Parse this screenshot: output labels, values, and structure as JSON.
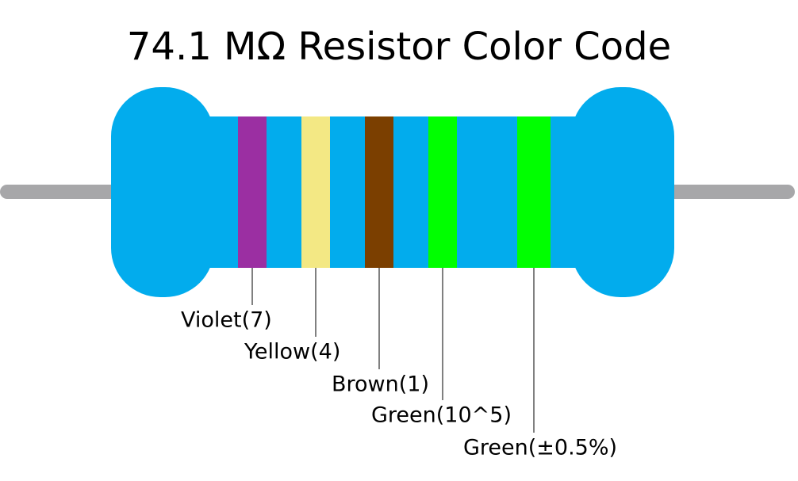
{
  "title": "74.1 MΩ Resistor Color Code",
  "lead_color": "#a7a7a9",
  "body_color": "#02aced",
  "bands": [
    {
      "label": "Violet(7)",
      "color": "#9b2fa2"
    },
    {
      "label": "Yellow(4)",
      "color": "#f3e884"
    },
    {
      "label": "Brown(1)",
      "color": "#7b3f00"
    },
    {
      "label": "Green(10^5)",
      "color": "#00ff00"
    },
    {
      "label": "Green(±0.5%)",
      "color": "#00ff00"
    }
  ]
}
